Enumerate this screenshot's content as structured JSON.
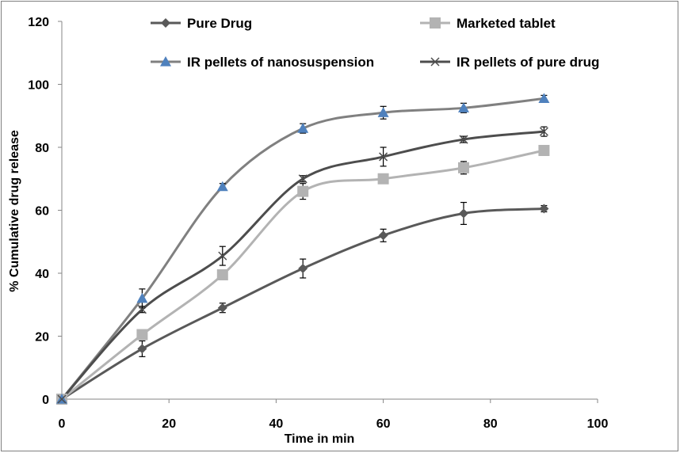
{
  "chart_data": {
    "type": "line",
    "x": [
      0,
      15,
      30,
      45,
      60,
      75,
      90
    ],
    "xlabel": "Time in min",
    "ylabel": "% Cumulative drug release",
    "xlim": [
      0,
      100
    ],
    "ylim": [
      0,
      120
    ],
    "xticks": [
      "0",
      "20",
      "40",
      "60",
      "80",
      "100"
    ],
    "yticks": [
      "0",
      "20",
      "40",
      "60",
      "80",
      "100",
      "120"
    ],
    "grid": false,
    "smooth": true,
    "legend_position": "top",
    "series": [
      {
        "name": "Pure Drug",
        "marker": "diamond",
        "color": "#595959",
        "values": [
          0,
          16,
          29,
          41.5,
          52,
          59,
          60.5
        ],
        "errors": [
          0,
          2.5,
          1.5,
          3,
          2,
          3.5,
          1
        ]
      },
      {
        "name": "Marketed tablet",
        "marker": "square",
        "color": "#b3b3b3",
        "values": [
          0,
          20.5,
          39.5,
          66,
          70,
          73.5,
          79
        ],
        "errors": [
          0,
          1,
          1,
          2.5,
          1.5,
          2,
          1
        ]
      },
      {
        "name": "IR pellets of nanosuspension",
        "marker": "triangle",
        "color": "#808080",
        "marker_color": "#4f81bd",
        "values": [
          0,
          32,
          67.5,
          86,
          91,
          92.5,
          95.5
        ],
        "errors": [
          0,
          3,
          1,
          1.5,
          2,
          1.5,
          1
        ]
      },
      {
        "name": "IR pellets of pure drug",
        "marker": "x",
        "color": "#4d4d4d",
        "values": [
          0,
          28.5,
          45.5,
          70,
          77,
          82.5,
          85
        ],
        "errors": [
          0,
          1,
          3,
          1,
          3,
          1,
          1.5
        ]
      }
    ]
  }
}
